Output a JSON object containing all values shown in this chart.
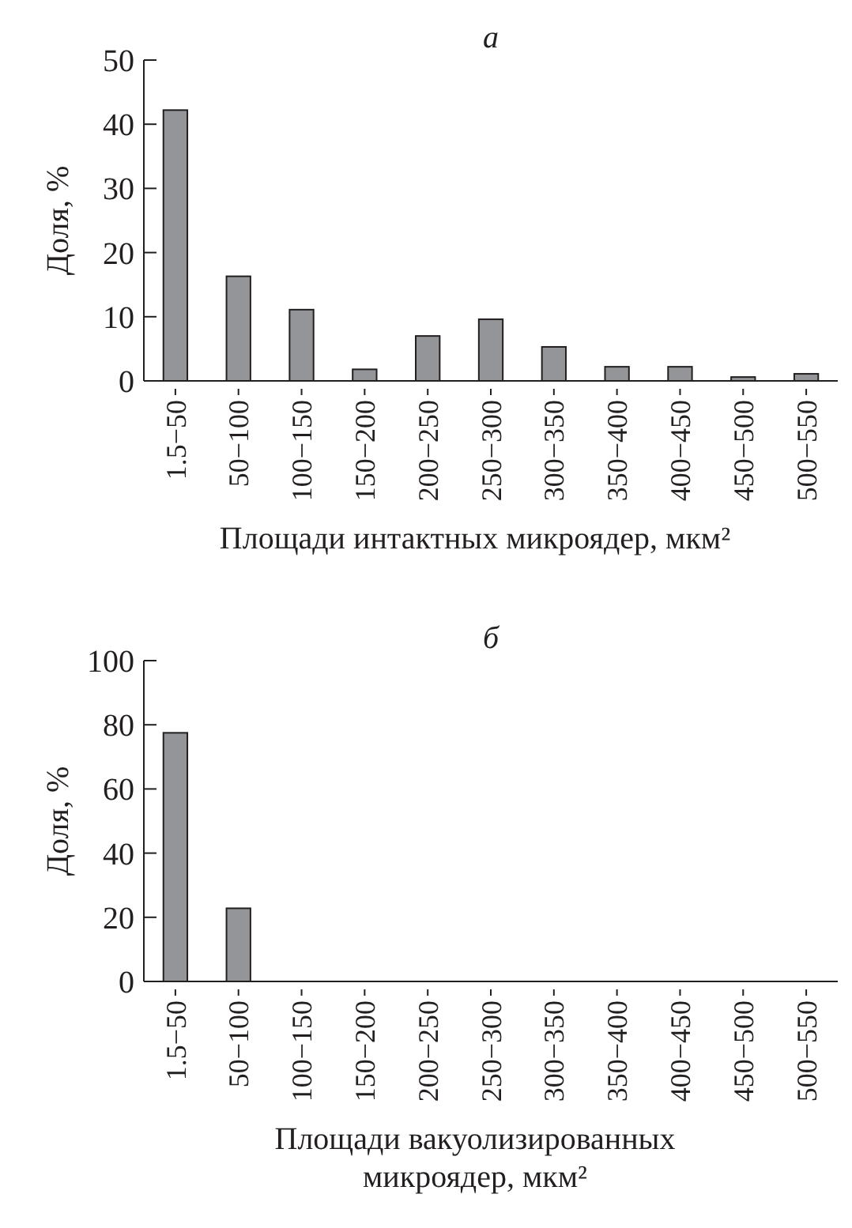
{
  "chart_data": [
    {
      "type": "bar",
      "title": "а",
      "xlabel": "Площади интактных микроядер, мкм²",
      "ylabel": "Доля, %",
      "categories": [
        "1.5−50",
        "50−100",
        "100−150",
        "150−200",
        "200−250",
        "250−300",
        "300−350",
        "350−400",
        "400−450",
        "450−500",
        "500−550"
      ],
      "values": [
        42.2,
        16.3,
        11.1,
        1.8,
        7.0,
        9.6,
        5.3,
        2.2,
        2.2,
        0.6,
        1.1
      ],
      "color": "#939598",
      "ylim": [
        0,
        50
      ],
      "yticks": [
        0,
        10,
        20,
        30,
        40,
        50
      ]
    },
    {
      "type": "bar",
      "title": "б",
      "xlabel": "Площади вакуолизированных микроядер, мкм²",
      "ylabel": "Доля, %",
      "categories": [
        "1.5−50",
        "50−100",
        "100−150",
        "150−200",
        "200−250",
        "250−300",
        "300−350",
        "350−400",
        "400−450",
        "450−500",
        "500−550"
      ],
      "values": [
        77.5,
        22.8,
        0,
        0,
        0,
        0,
        0,
        0,
        0,
        0,
        0
      ],
      "color": "#939598",
      "ylim": [
        0,
        100
      ],
      "yticks": [
        0,
        20,
        40,
        60,
        80,
        100
      ]
    }
  ]
}
